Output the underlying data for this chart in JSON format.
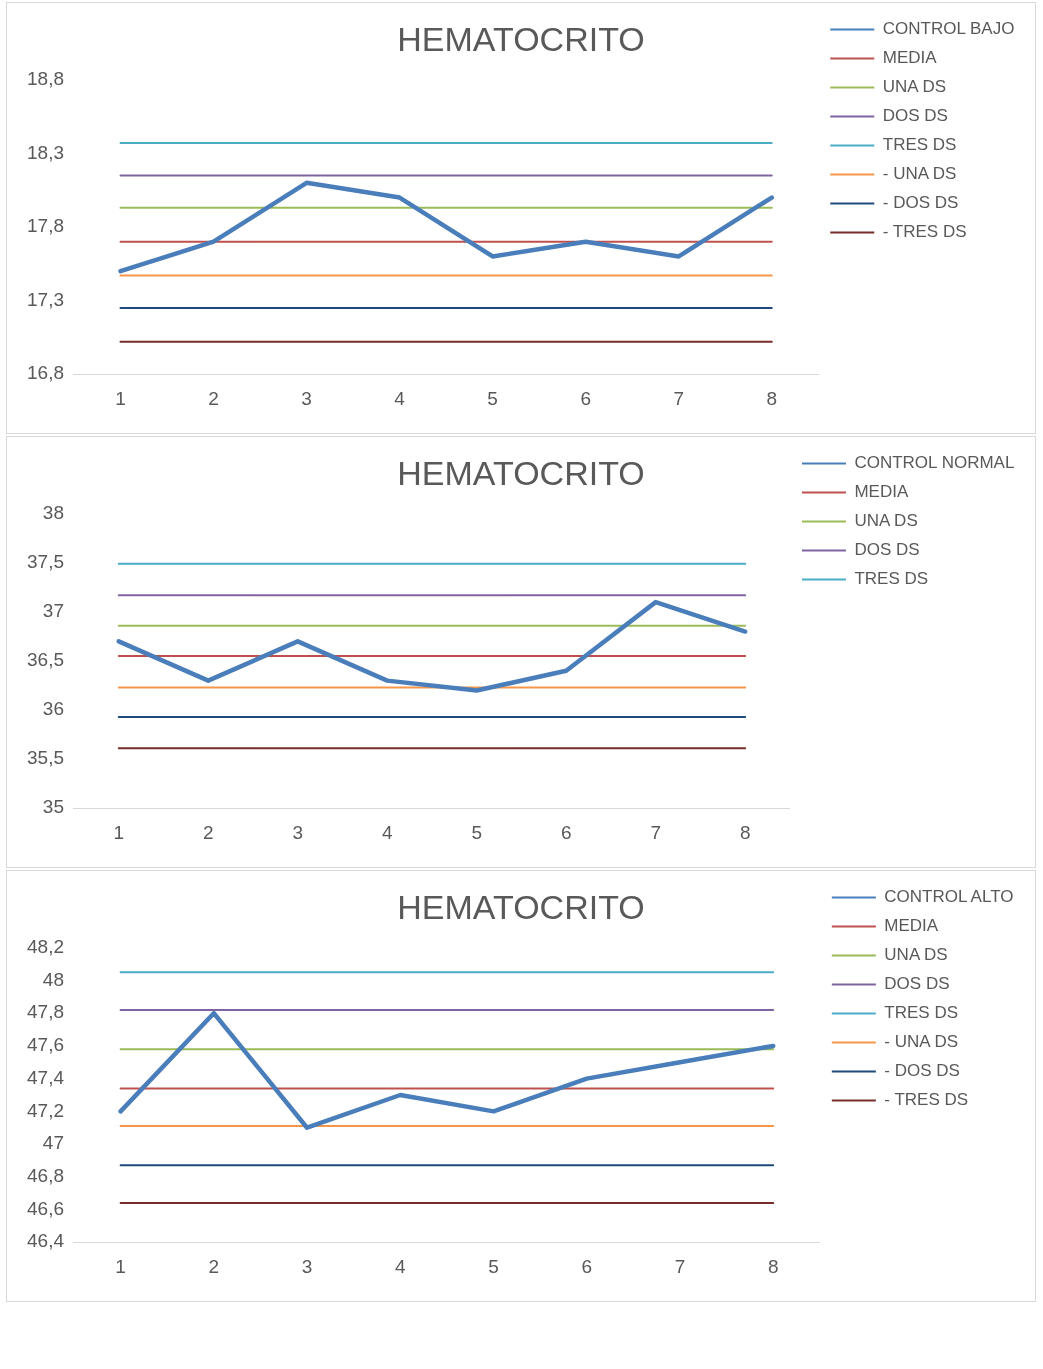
{
  "chart_data": [
    {
      "type": "line",
      "title": "HEMATOCRITO",
      "categories": [
        "1",
        "2",
        "3",
        "4",
        "5",
        "6",
        "7",
        "8"
      ],
      "grid": false,
      "legend": "right",
      "marker": "none",
      "line_style": "solid",
      "ylim": [
        16.8,
        18.8
      ],
      "yticks": [
        {
          "value": 16.8,
          "label": "16,8"
        },
        {
          "value": 17.3,
          "label": "17,3"
        },
        {
          "value": 17.8,
          "label": "17,8"
        },
        {
          "value": 18.3,
          "label": "18,3"
        },
        {
          "value": 18.8,
          "label": "18,8"
        }
      ],
      "series": [
        {
          "name": "CONTROL BAJO",
          "color": "#4a7ebb",
          "values": [
            17.5,
            17.7,
            18.1,
            18.0,
            17.6,
            17.7,
            17.6,
            18.0
          ]
        },
        {
          "name": "MEDIA",
          "color": "#c0504d",
          "values": [
            17.7,
            17.7,
            17.7,
            17.7,
            17.7,
            17.7,
            17.7,
            17.7
          ]
        },
        {
          "name": "UNA DS",
          "color": "#9bbb59",
          "values": [
            17.93,
            17.93,
            17.93,
            17.93,
            17.93,
            17.93,
            17.93,
            17.93
          ]
        },
        {
          "name": "DOS DS",
          "color": "#8064a2",
          "values": [
            18.15,
            18.15,
            18.15,
            18.15,
            18.15,
            18.15,
            18.15,
            18.15
          ]
        },
        {
          "name": "TRES DS",
          "color": "#4bacc6",
          "values": [
            18.37,
            18.37,
            18.37,
            18.37,
            18.37,
            18.37,
            18.37,
            18.37
          ]
        },
        {
          "name": "- UNA DS",
          "color": "#f79646",
          "values": [
            17.47,
            17.47,
            17.47,
            17.47,
            17.47,
            17.47,
            17.47,
            17.47
          ]
        },
        {
          "name": "- DOS DS",
          "color": "#1f497d",
          "values": [
            17.25,
            17.25,
            17.25,
            17.25,
            17.25,
            17.25,
            17.25,
            17.25
          ]
        },
        {
          "name": "- TRES DS",
          "color": "#772c2a",
          "values": [
            17.02,
            17.02,
            17.02,
            17.02,
            17.02,
            17.02,
            17.02,
            17.02
          ]
        }
      ]
    },
    {
      "type": "line",
      "title": "HEMATOCRITO",
      "categories": [
        "1",
        "2",
        "3",
        "4",
        "5",
        "6",
        "7",
        "8"
      ],
      "grid": false,
      "legend": "right",
      "marker": "none",
      "line_style": "solid",
      "ylim": [
        35,
        38
      ],
      "yticks": [
        35,
        {
          "value": 35.5,
          "label": "35,5"
        },
        36,
        {
          "value": 36.5,
          "label": "36,5"
        },
        37,
        {
          "value": 37.5,
          "label": "37,5"
        },
        38
      ],
      "series": [
        {
          "name": "CONTROL NORMAL",
          "color": "#4a7ebb",
          "values": [
            36.7,
            36.3,
            36.7,
            36.3,
            36.2,
            36.4,
            37.1,
            36.8
          ]
        },
        {
          "name": "MEDIA",
          "color": "#c0504d",
          "values": [
            36.55,
            36.55,
            36.55,
            36.55,
            36.55,
            36.55,
            36.55,
            36.55
          ]
        },
        {
          "name": "UNA DS",
          "color": "#9bbb59",
          "values": [
            36.86,
            36.86,
            36.86,
            36.86,
            36.86,
            36.86,
            36.86,
            36.86
          ]
        },
        {
          "name": "DOS DS",
          "color": "#8064a2",
          "values": [
            37.17,
            37.17,
            37.17,
            37.17,
            37.17,
            37.17,
            37.17,
            37.17
          ]
        },
        {
          "name": "TRES DS",
          "color": "#4bacc6",
          "values": [
            37.49,
            37.49,
            37.49,
            37.49,
            37.49,
            37.49,
            37.49,
            37.49
          ]
        },
        {
          "color": "#f79646",
          "values": [
            36.23,
            36.23,
            36.23,
            36.23,
            36.23,
            36.23,
            36.23,
            36.23
          ]
        },
        {
          "color": "#1f497d",
          "values": [
            35.93,
            35.93,
            35.93,
            35.93,
            35.93,
            35.93,
            35.93,
            35.93
          ]
        },
        {
          "color": "#772c2a",
          "values": [
            35.61,
            35.61,
            35.61,
            35.61,
            35.61,
            35.61,
            35.61,
            35.61
          ]
        }
      ]
    },
    {
      "type": "line",
      "title": "HEMATOCRITO",
      "categories": [
        "1",
        "2",
        "3",
        "4",
        "5",
        "6",
        "7",
        "8"
      ],
      "grid": false,
      "legend": "right",
      "marker": "none",
      "line_style": "solid",
      "ylim": [
        46.4,
        48.2
      ],
      "yticks": [
        {
          "value": 46.4,
          "label": "46,4"
        },
        {
          "value": 46.6,
          "label": "46,6"
        },
        {
          "value": 46.8,
          "label": "46,8"
        },
        47,
        {
          "value": 47.2,
          "label": "47,2"
        },
        {
          "value": 47.4,
          "label": "47,4"
        },
        {
          "value": 47.6,
          "label": "47,6"
        },
        {
          "value": 47.8,
          "label": "47,8"
        },
        48,
        {
          "value": 48.2,
          "label": "48,2"
        }
      ],
      "series": [
        {
          "name": "CONTROL ALTO",
          "color": "#4a7ebb",
          "values": [
            47.2,
            47.8,
            47.1,
            47.3,
            47.2,
            47.4,
            47.5,
            47.6
          ]
        },
        {
          "name": "MEDIA",
          "color": "#c0504d",
          "values": [
            47.34,
            47.34,
            47.34,
            47.34,
            47.34,
            47.34,
            47.34,
            47.34
          ]
        },
        {
          "name": "UNA DS",
          "color": "#9bbb59",
          "values": [
            47.58,
            47.58,
            47.58,
            47.58,
            47.58,
            47.58,
            47.58,
            47.58
          ]
        },
        {
          "name": "DOS DS",
          "color": "#8064a2",
          "values": [
            47.82,
            47.82,
            47.82,
            47.82,
            47.82,
            47.82,
            47.82,
            47.82
          ]
        },
        {
          "name": "TRES DS",
          "color": "#4bacc6",
          "values": [
            48.05,
            48.05,
            48.05,
            48.05,
            48.05,
            48.05,
            48.05,
            48.05
          ]
        },
        {
          "name": "- UNA DS",
          "color": "#f79646",
          "values": [
            47.11,
            47.11,
            47.11,
            47.11,
            47.11,
            47.11,
            47.11,
            47.11
          ]
        },
        {
          "name": "- DOS DS",
          "color": "#1f497d",
          "values": [
            46.87,
            46.87,
            46.87,
            46.87,
            46.87,
            46.87,
            46.87,
            46.87
          ]
        },
        {
          "name": "- TRES DS",
          "color": "#772c2a",
          "values": [
            46.64,
            46.64,
            46.64,
            46.64,
            46.64,
            46.64,
            46.64,
            46.64
          ]
        }
      ]
    }
  ]
}
